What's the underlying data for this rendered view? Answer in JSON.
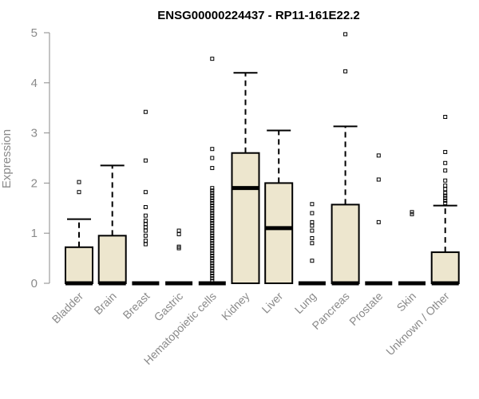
{
  "chart_data": {
    "type": "boxplot",
    "title": "ENSG00000224437 - RP11-161E22.2",
    "xlabel": "",
    "ylabel": "Expression",
    "ylim": [
      0,
      5
    ],
    "yticks": [
      0,
      1,
      2,
      3,
      4,
      5
    ],
    "grid": false,
    "colors": {
      "box_fill": "#ede6ce",
      "stroke": "#000000",
      "axis": "#8a8a8a",
      "label": "#8a8a8a"
    },
    "categories": [
      "Bladder",
      "Brain",
      "Breast",
      "Gastric",
      "Hematopoietic cells",
      "Kidney",
      "Liver",
      "Lung",
      "Pancreas",
      "Prostate",
      "Skin",
      "Unknown / Other"
    ],
    "boxes": [
      {
        "name": "Bladder",
        "whisker_low": 0,
        "q1": 0,
        "median": 0,
        "q3": 0.72,
        "whisker_high": 1.28,
        "outliers": [
          1.82,
          2.02
        ]
      },
      {
        "name": "Brain",
        "whisker_low": 0,
        "q1": 0,
        "median": 0,
        "q3": 0.95,
        "whisker_high": 2.35,
        "outliers": []
      },
      {
        "name": "Breast",
        "whisker_low": 0,
        "q1": 0,
        "median": 0,
        "q3": 0,
        "whisker_high": 0,
        "outliers": [
          0.78,
          0.85,
          0.95,
          1.05,
          1.12,
          1.18,
          1.25,
          1.35,
          1.52,
          1.82,
          2.45,
          3.42
        ]
      },
      {
        "name": "Gastric",
        "whisker_low": 0,
        "q1": 0,
        "median": 0,
        "q3": 0,
        "whisker_high": 0,
        "outliers": [
          0.7,
          0.73,
          0.98,
          1.05
        ]
      },
      {
        "name": "Hematopoietic cells",
        "whisker_low": 0,
        "q1": 0,
        "median": 0,
        "q3": 0,
        "whisker_high": 0,
        "outliers": [
          0.05,
          0.1,
          0.15,
          0.2,
          0.25,
          0.3,
          0.35,
          0.4,
          0.45,
          0.5,
          0.55,
          0.6,
          0.65,
          0.7,
          0.75,
          0.8,
          0.85,
          0.9,
          0.95,
          1.0,
          1.05,
          1.1,
          1.15,
          1.2,
          1.25,
          1.3,
          1.35,
          1.4,
          1.45,
          1.5,
          1.55,
          1.6,
          1.65,
          1.7,
          1.75,
          1.8,
          1.85,
          1.9,
          2.3,
          2.5,
          2.68,
          4.48
        ]
      },
      {
        "name": "Kidney",
        "whisker_low": 0,
        "q1": 0,
        "median": 1.9,
        "q3": 2.6,
        "whisker_high": 4.2,
        "outliers": []
      },
      {
        "name": "Liver",
        "whisker_low": 0,
        "q1": 0,
        "median": 1.1,
        "q3": 2.0,
        "whisker_high": 3.05,
        "outliers": []
      },
      {
        "name": "Lung",
        "whisker_low": 0,
        "q1": 0,
        "median": 0,
        "q3": 0,
        "whisker_high": 0,
        "outliers": [
          0.45,
          0.8,
          0.9,
          1.05,
          1.15,
          1.22,
          1.4,
          1.58
        ]
      },
      {
        "name": "Pancreas",
        "whisker_low": 0,
        "q1": 0,
        "median": 0,
        "q3": 1.57,
        "whisker_high": 3.13,
        "outliers": [
          4.23,
          4.97
        ]
      },
      {
        "name": "Prostate",
        "whisker_low": 0,
        "q1": 0,
        "median": 0,
        "q3": 0,
        "whisker_high": 0,
        "outliers": [
          1.22,
          2.07,
          2.55
        ]
      },
      {
        "name": "Skin",
        "whisker_low": 0,
        "q1": 0,
        "median": 0,
        "q3": 0,
        "whisker_high": 0,
        "outliers": [
          1.38,
          1.42
        ]
      },
      {
        "name": "Unknown / Other",
        "whisker_low": 0,
        "q1": 0,
        "median": 0,
        "q3": 0.62,
        "whisker_high": 1.55,
        "outliers": [
          1.6,
          1.65,
          1.7,
          1.75,
          1.8,
          1.88,
          1.95,
          2.05,
          2.25,
          2.4,
          2.62,
          3.32
        ]
      }
    ]
  }
}
